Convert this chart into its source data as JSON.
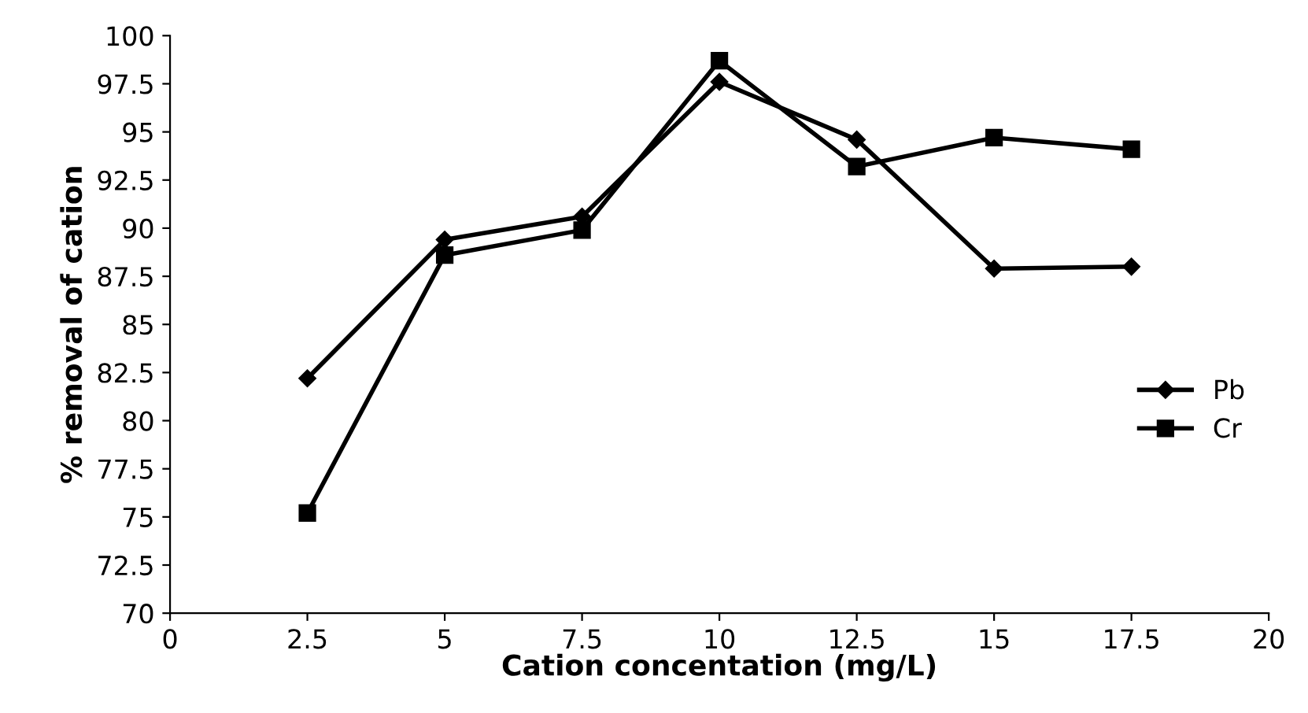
{
  "chart_data": {
    "type": "line",
    "xlabel": "Cation concentation (mg/L)",
    "ylabel": "% removal of cation",
    "x": [
      2.5,
      5,
      7.5,
      10,
      12.5,
      15,
      17.5
    ],
    "series": [
      {
        "name": "Pb",
        "color": "#000000",
        "marker": "diamond",
        "values": [
          82.2,
          89.4,
          90.6,
          97.6,
          94.6,
          87.9,
          88.0
        ]
      },
      {
        "name": "Cr",
        "color": "#000000",
        "marker": "square",
        "values": [
          75.2,
          88.6,
          89.9,
          98.7,
          93.2,
          94.7,
          94.1
        ]
      }
    ],
    "xlim": [
      0,
      20
    ],
    "xticks": [
      0,
      2.5,
      5,
      7.5,
      10,
      12.5,
      15,
      17.5,
      20
    ],
    "ylim": [
      70,
      100
    ],
    "yticks": [
      70,
      72.5,
      75,
      77.5,
      80,
      82.5,
      85,
      87.5,
      90,
      92.5,
      95,
      97.5,
      100
    ],
    "grid": false,
    "legend": "right",
    "line_style": "solid"
  }
}
